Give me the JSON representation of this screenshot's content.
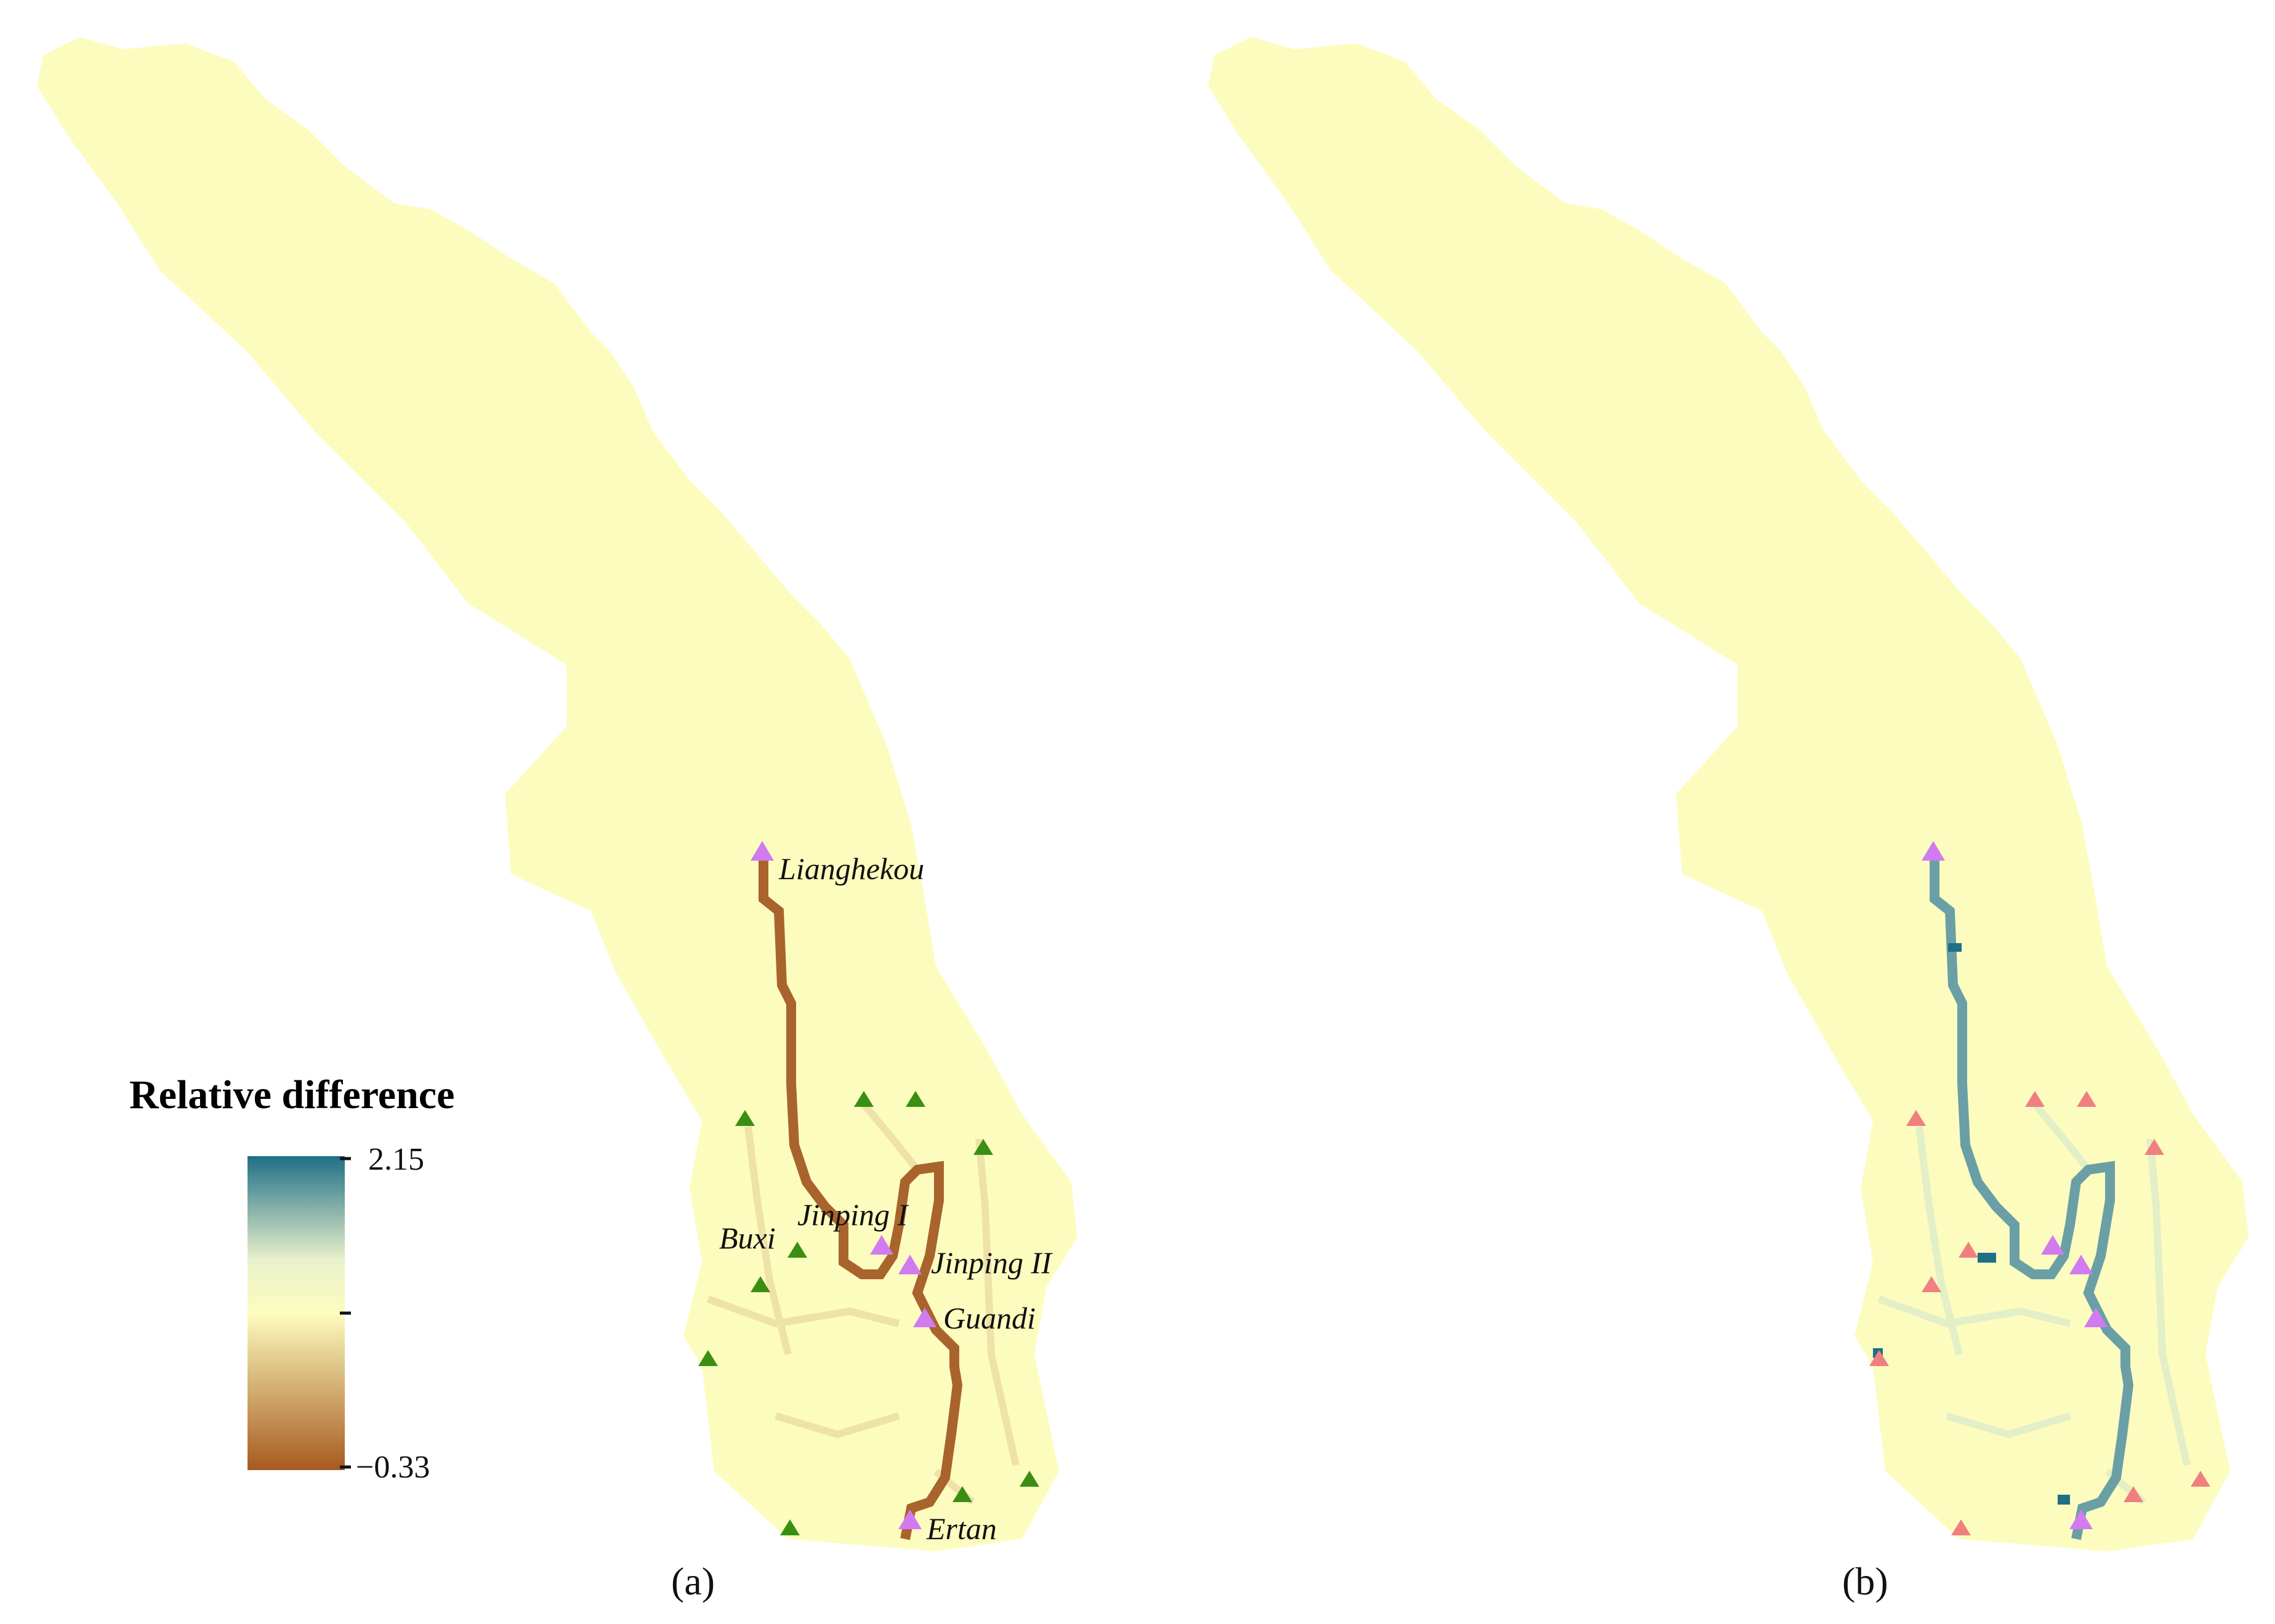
{
  "colors": {
    "basin_fill": "#fdfcbf",
    "scale_high": "#1f6f86",
    "scale_mid_high": "#e9f0cc",
    "scale_mid": "#fdfcbf",
    "scale_low": "#a75a1f",
    "river_negative": "#a8642c",
    "river_positive": "#6a9fa6",
    "main_station_marker": "#d27bf0",
    "minor_station_marker_a": "#3a8f12",
    "minor_station_marker_b": "#f08080"
  },
  "legend": {
    "title": "Relative difference",
    "max_label": "2.15",
    "min_label": "−0.33",
    "max_value": 2.15,
    "min_value": -0.33,
    "mid_value": 0
  },
  "stations": {
    "lianghekou": "Lianghekou",
    "jinping1": "Jinping I",
    "jinping2": "Jinping II",
    "guandi": "Guandi",
    "ertan": "Ertan",
    "buxi": "Buxi"
  },
  "panels": {
    "a": {
      "label": "(a)"
    },
    "b": {
      "label": "(b)"
    }
  }
}
